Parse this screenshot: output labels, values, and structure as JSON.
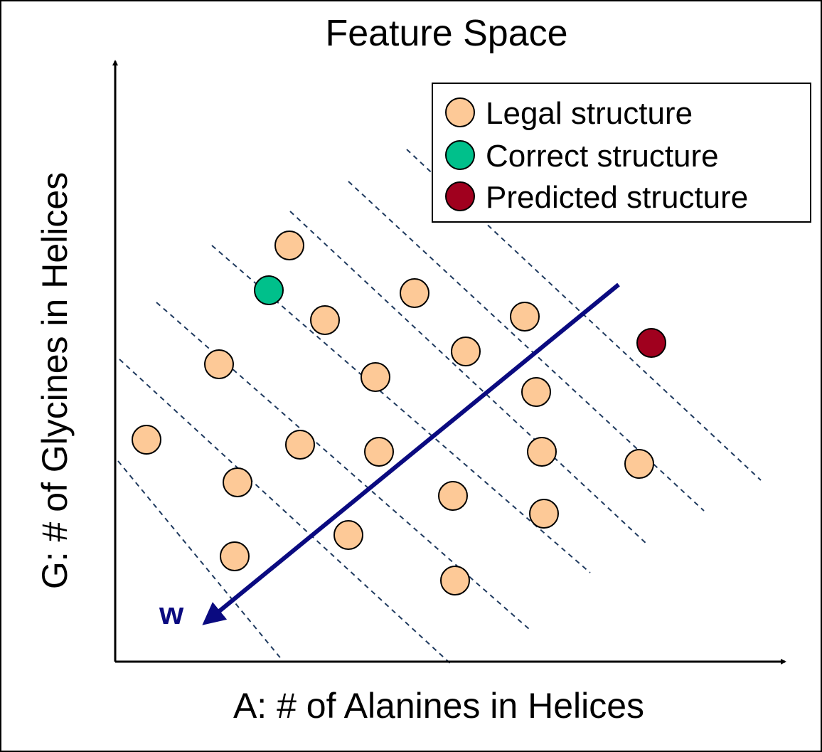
{
  "title": "Feature Space",
  "x_axis_label": "A:  # of Alanines in Helices",
  "y_axis_label": "G:  # of Glycines in Helices",
  "legend": [
    "Legal structure",
    "Correct structure",
    "Predicted structure"
  ],
  "vector_label": "w"
}
